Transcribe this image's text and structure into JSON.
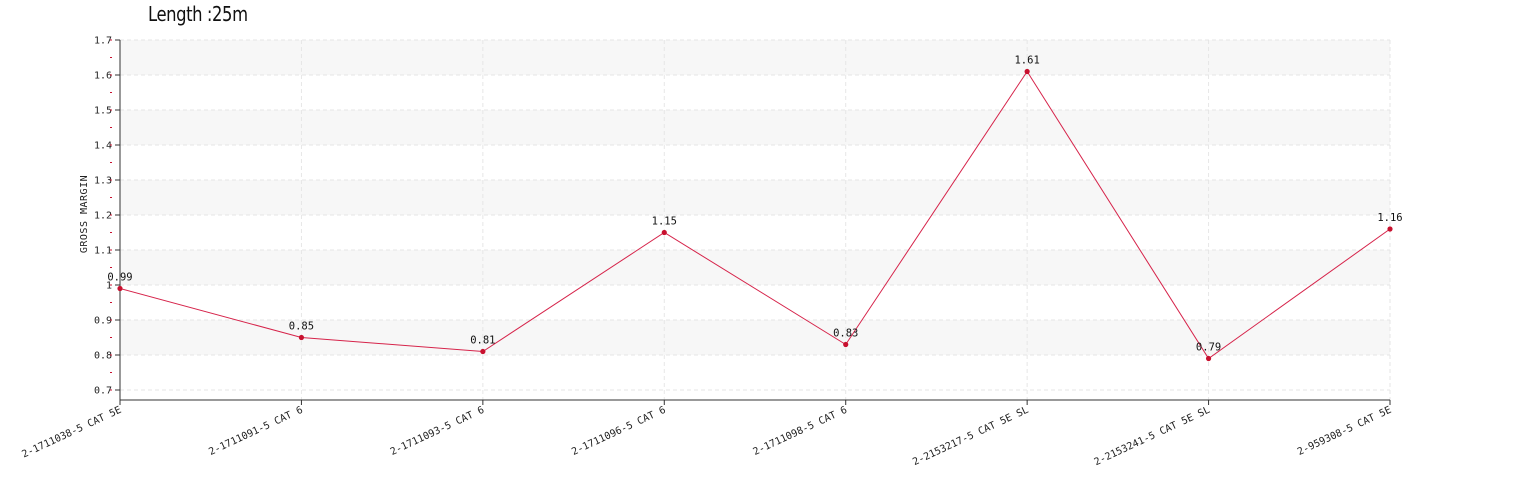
{
  "chart_data": {
    "type": "line",
    "title": "Length :25m",
    "xlabel": "",
    "ylabel": "GROSS MARGIN",
    "categories": [
      "2-1711038-5 CAT 5E",
      "2-1711091-5 CAT 6",
      "2-1711093-5 CAT 6",
      "2-1711096-5 CAT 6",
      "2-1711098-5 CAT 6",
      "2-2153217-5 CAT 5E SL",
      "2-2153241-5 CAT 5E SL",
      "2-959308-5 CAT 5E"
    ],
    "values": [
      0.99,
      0.85,
      0.81,
      1.15,
      0.83,
      1.61,
      0.79,
      1.16
    ],
    "data_labels": [
      "0.99",
      "0.85",
      "0.81",
      "1.15",
      "0.83",
      "1.61",
      "0.79",
      "1.16"
    ],
    "ylim": [
      0.7,
      1.7
    ],
    "yticks": [
      "0.7",
      "0.8",
      "0.9",
      "1",
      "1.1",
      "1.2",
      "1.3",
      "1.4",
      "1.5",
      "1.6",
      "1.7"
    ],
    "grid": true,
    "legend": "none",
    "colors": {
      "line": "#d6234a",
      "marker": "#c8102e",
      "band": "#f7f7f7",
      "grid": "#e6e6e6",
      "axis": "#333333"
    }
  }
}
